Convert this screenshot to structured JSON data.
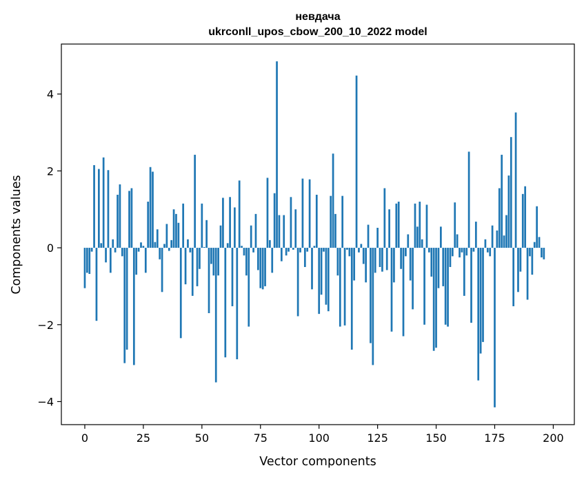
{
  "chart_data": {
    "type": "bar",
    "title": "невдача",
    "subtitle": "ukrconll_upos_cbow_200_10_2022 model",
    "xlabel": "Vector components",
    "ylabel": "Components values",
    "xlim": [
      -10,
      209
    ],
    "ylim": [
      -4.6,
      5.3
    ],
    "xticks": [
      0,
      25,
      50,
      75,
      100,
      125,
      150,
      175,
      200
    ],
    "yticks": [
      -4,
      -2,
      0,
      2,
      4
    ],
    "xtick_labels": [
      "0",
      "25",
      "50",
      "75",
      "100",
      "125",
      "150",
      "175",
      "200"
    ],
    "ytick_labels": [
      "−4",
      "−2",
      "0",
      "2",
      "4"
    ],
    "bar_color": "#1f77b4",
    "grid": false,
    "values": [
      -1.05,
      -0.65,
      -0.68,
      -0.1,
      2.15,
      -1.9,
      2.05,
      0.12,
      2.35,
      -0.38,
      2.02,
      -0.65,
      0.22,
      -0.12,
      1.38,
      1.65,
      -0.22,
      -3.0,
      -2.65,
      1.48,
      1.55,
      -3.05,
      -0.7,
      -0.1,
      0.14,
      0.05,
      -0.65,
      1.2,
      2.1,
      1.98,
      0.15,
      0.48,
      -0.3,
      -1.15,
      0.1,
      0.62,
      -0.08,
      0.2,
      1.0,
      0.88,
      0.65,
      -2.35,
      1.15,
      -0.95,
      0.22,
      -0.12,
      -1.25,
      2.42,
      -1.0,
      -0.55,
      1.15,
      0.02,
      0.72,
      -1.7,
      -0.42,
      -0.72,
      -3.5,
      -0.72,
      0.58,
      1.3,
      -2.85,
      0.12,
      1.32,
      -1.52,
      1.05,
      -2.9,
      1.75,
      0.05,
      -0.2,
      -0.72,
      -2.05,
      0.58,
      -0.12,
      0.88,
      -0.58,
      -1.05,
      -1.08,
      -1.0,
      1.82,
      0.2,
      -0.65,
      1.42,
      4.85,
      0.85,
      -0.35,
      0.85,
      -0.2,
      -0.1,
      1.32,
      -0.05,
      1.0,
      -1.78,
      -0.12,
      1.8,
      -0.5,
      -0.1,
      1.78,
      -1.08,
      0.05,
      1.38,
      -1.72,
      -1.22,
      -0.1,
      -1.48,
      -1.65,
      1.35,
      2.45,
      0.88,
      -0.72,
      -2.05,
      1.35,
      -2.02,
      -0.05,
      -0.22,
      -2.65,
      -0.85,
      4.48,
      -0.12,
      0.1,
      -0.42,
      -0.9,
      0.6,
      -2.48,
      -3.05,
      -0.65,
      0.52,
      -0.5,
      -0.62,
      1.55,
      -0.58,
      1.0,
      -2.18,
      -0.9,
      1.15,
      1.2,
      -0.55,
      -2.3,
      -0.22,
      0.35,
      -0.85,
      -1.6,
      1.15,
      0.55,
      1.2,
      0.22,
      -2.0,
      1.12,
      -0.12,
      -0.75,
      -2.68,
      -2.6,
      -1.05,
      0.55,
      -1.0,
      -2.0,
      -2.05,
      -0.5,
      -0.22,
      1.18,
      0.35,
      -0.25,
      -0.12,
      -1.25,
      -0.2,
      2.5,
      -1.95,
      -0.1,
      0.68,
      -3.45,
      -2.75,
      -2.45,
      0.22,
      -0.12,
      -0.22,
      0.58,
      -4.15,
      0.45,
      1.55,
      2.42,
      0.32,
      0.85,
      1.88,
      2.88,
      -1.52,
      3.52,
      -1.15,
      -0.62,
      1.4,
      1.6,
      -1.35,
      -0.22,
      -0.7,
      0.15,
      1.08,
      0.28,
      -0.25,
      -0.3
    ]
  }
}
